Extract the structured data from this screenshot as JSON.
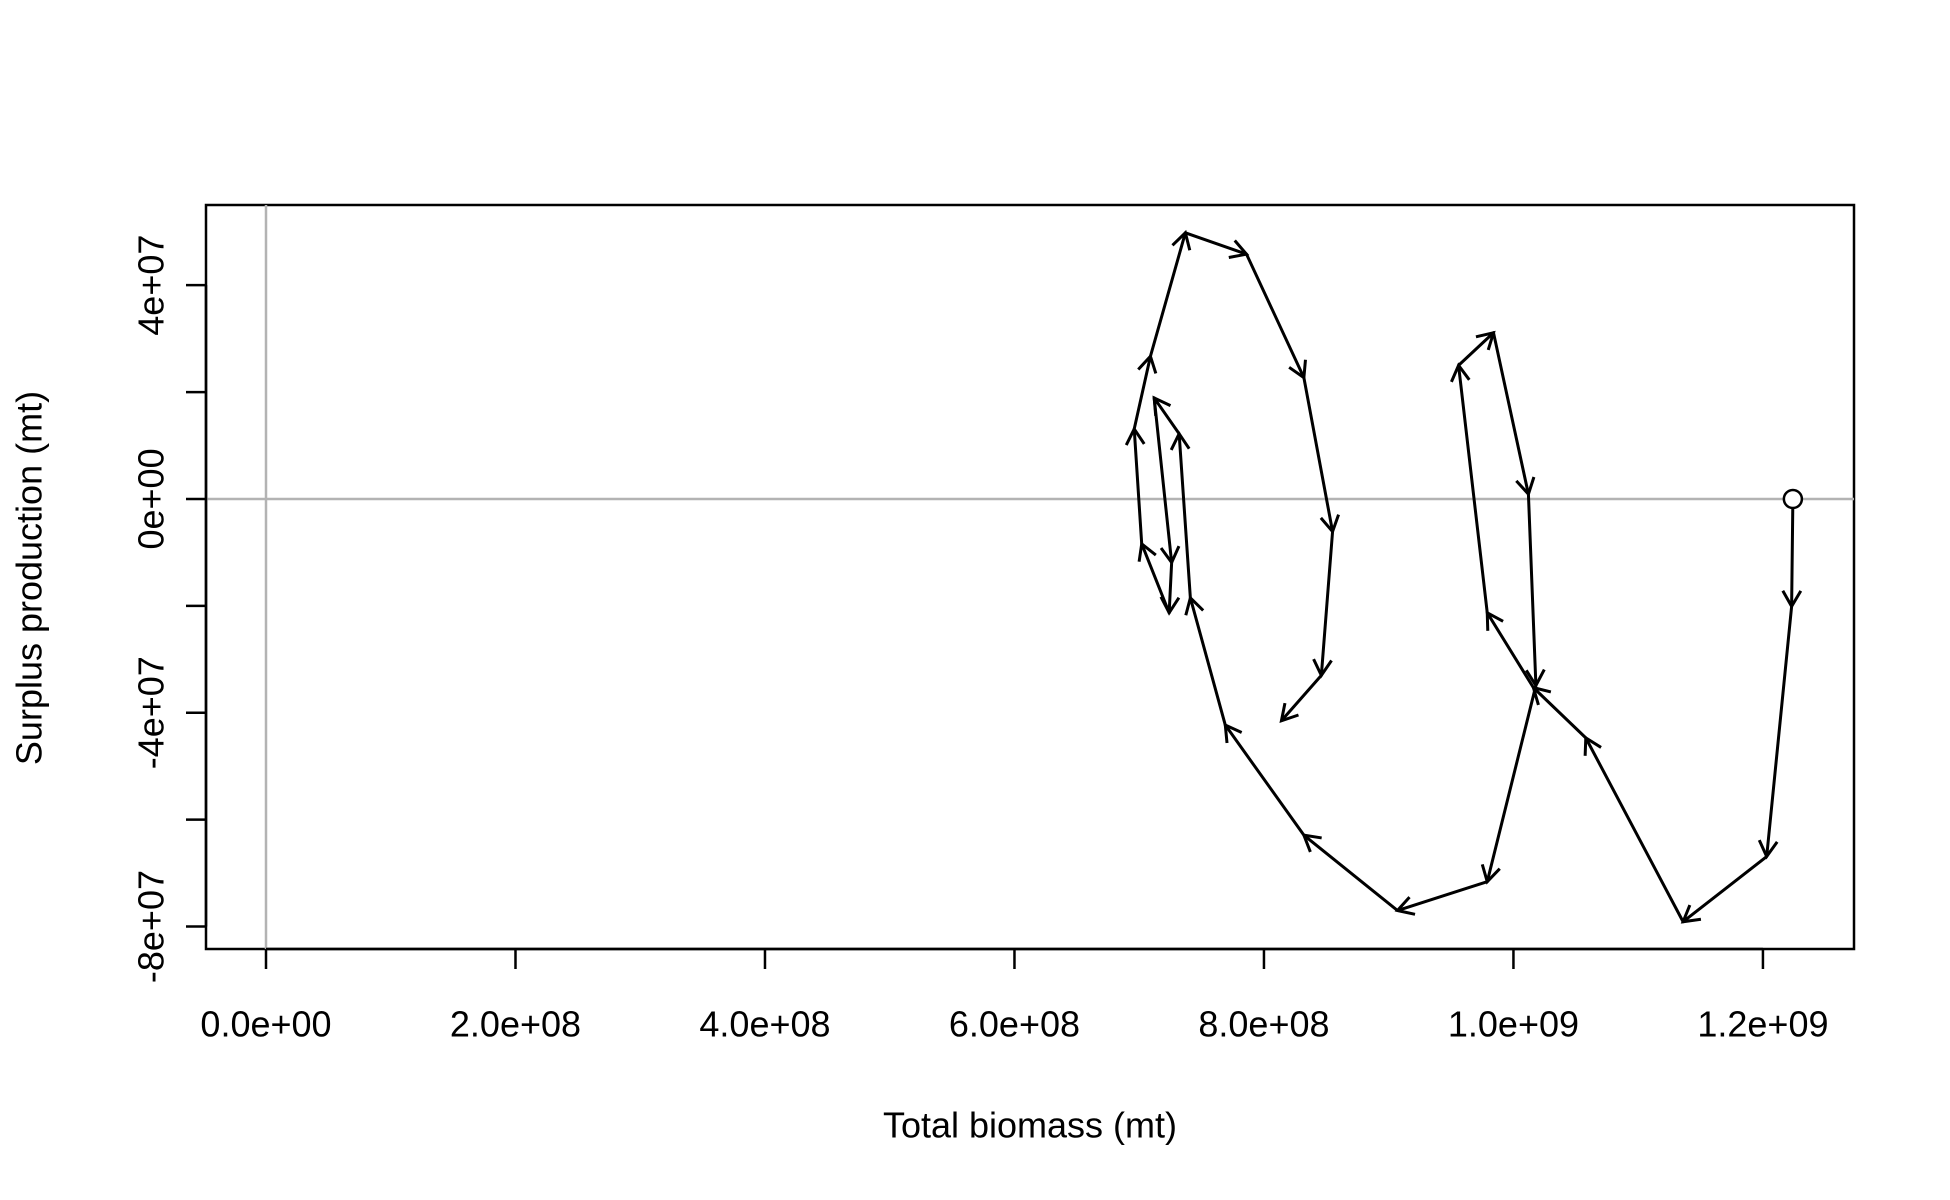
{
  "chart_data": {
    "type": "line",
    "x_label": "Total biomass (mt)",
    "y_label": "Surplus production (mt)",
    "color": "#000000",
    "reference_color": "#b3b3b3",
    "reference_lines": {
      "x": [
        0
      ],
      "y": [
        0
      ]
    },
    "start_marker": true,
    "arrows": true,
    "xlim": [
      -48100000,
      1273000000
    ],
    "ylim": [
      -84200000,
      55000000
    ],
    "xticks": [
      {
        "value": 0,
        "label": "0.0e+00"
      },
      {
        "value": 200000000,
        "label": "2.0e+08"
      },
      {
        "value": 400000000,
        "label": "4.0e+08"
      },
      {
        "value": 600000000,
        "label": "6.0e+08"
      },
      {
        "value": 800000000,
        "label": "8.0e+08"
      },
      {
        "value": 1000000000,
        "label": "1.0e+09"
      },
      {
        "value": 1200000000,
        "label": "1.2e+09"
      }
    ],
    "yticks": [
      {
        "value": -80000000,
        "label": "-8e+07"
      },
      {
        "value": -60000000,
        "label": null
      },
      {
        "value": -40000000,
        "label": "-4e+07"
      },
      {
        "value": -20000000,
        "label": null
      },
      {
        "value": 0,
        "label": "0e+00"
      },
      {
        "value": 20000000,
        "label": null
      },
      {
        "value": 40000000,
        "label": "4e+07"
      }
    ],
    "x": [
      1224000000,
      1223000000,
      1203000000,
      1136000000,
      1058000000,
      1016000000,
      979000000,
      956000000,
      984000000,
      1012000000,
      1018000000,
      979000000,
      907000000,
      832000000,
      769000000,
      741000000,
      732000000,
      712000000,
      726000000,
      724000000,
      702000000,
      696000000,
      709000000,
      737000000,
      786000000,
      832000000,
      855000000,
      846000000,
      814000000
    ],
    "values": [
      0,
      -20100000,
      -66900000,
      -79100000,
      -44700000,
      -35300000,
      -21300000,
      25000000,
      31100000,
      900000,
      -34900000,
      -71600000,
      -77000000,
      -62900000,
      -42300000,
      -18500000,
      12200000,
      18900000,
      -11900000,
      -21300000,
      -8400000,
      13100000,
      26700000,
      49800000,
      45800000,
      22700000,
      -6100000,
      -33000000,
      -41500000
    ]
  }
}
